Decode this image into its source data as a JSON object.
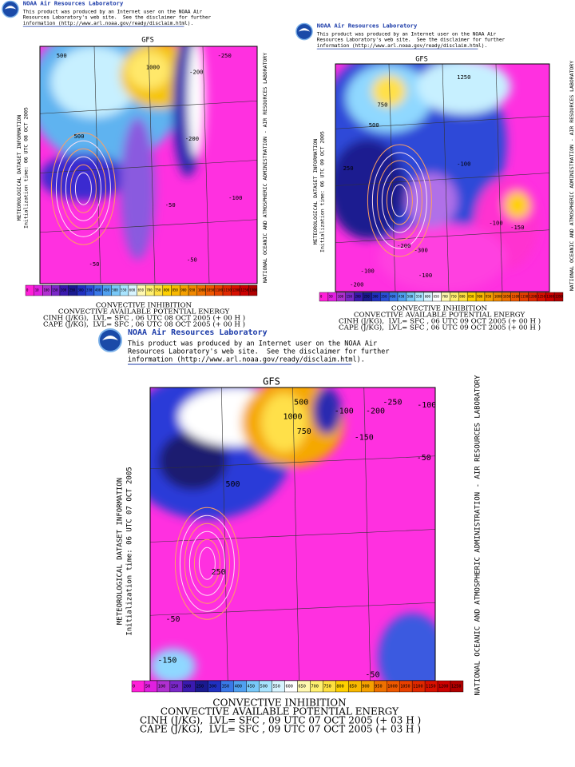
{
  "panels": [
    {
      "disclaimer": {
        "org": "NOAA Air Resources Laboratory",
        "lines": [
          "This product was produced by an Internet user on the NOAA Air",
          "Resources Laboratory's web site.  See the disclaimer for further",
          "information (http://www.arl.noaa.gov/ready/disclaim.html)."
        ]
      },
      "model": "GFS",
      "left_text": [
        "METEOROLOGICAL DATASET INFORMATION",
        "Initialization time: 06 UTC 08 OCT 2005"
      ],
      "right_text": "NATIONAL OCEANIC AND ATMOSPHERIC ADMINISTRATION - AIR RESOURCES LABORATORY",
      "contour_labels": [
        "500",
        "1000",
        "-250",
        "-200",
        "500",
        "-200",
        "-100",
        "-50",
        "-50",
        "-50"
      ],
      "colorbar": [
        0,
        10,
        100,
        150,
        200,
        250,
        300,
        350,
        400,
        450,
        500,
        550,
        600,
        650,
        700,
        750,
        800,
        850,
        900,
        950,
        1000,
        1050,
        1100,
        1150,
        1200,
        1250,
        1300
      ],
      "caption": [
        "CONVECTIVE INHIBITION",
        "CONVECTIVE AVAILABLE POTENTIAL ENERGY",
        "CINH (J/KG),  LVL= SFC , 06 UTC 08 OCT 2005 (+ 00 H )",
        "CAPE (J/KG),  LVL= SFC , 06 UTC 08 OCT 2005 (+ 00 H )"
      ]
    },
    {
      "disclaimer": {
        "org": "NOAA Air Resources Laboratory",
        "lines": [
          "This product was produced by an Internet user on the NOAA Air",
          "Resources Laboratory's web site.  See the disclaimer for further",
          "information (http://www.arl.noaa.gov/ready/disclaim.html)."
        ]
      },
      "model": "GFS",
      "left_text": [
        "METEOROLOGICAL DATASET INFORMATION",
        "Initialization time: 06 UTC 09 OCT 2005"
      ],
      "right_text": "NATIONAL OCEANIC AND ATMOSPHERIC ADMINISTRATION - AIR RESOURCES LABORATORY",
      "contour_labels": [
        "1250",
        "750",
        "500",
        "250",
        "-100",
        "-100",
        "-150",
        "-200",
        "-300",
        "-100",
        "-100",
        "-200"
      ],
      "colorbar": [
        0,
        50,
        100,
        150,
        200,
        250,
        300,
        350,
        400,
        450,
        500,
        550,
        600,
        650,
        700,
        750,
        800,
        850,
        900,
        950,
        1000,
        1050,
        1100,
        1150,
        1200,
        1250,
        1300,
        1350
      ],
      "caption": [
        "CONVECTIVE INHIBITION",
        "CONVECTIVE AVAILABLE POTENTIAL ENERGY",
        "CINH (J/KG),  LVL= SFC , 06 UTC 09 OCT 2005 (+ 00 H )",
        "CAPE (J/KG),  LVL= SFC , 06 UTC 09 OCT 2005 (+ 00 H )"
      ]
    },
    {
      "disclaimer": {
        "org": "NOAA Air Resources Laboratory",
        "lines": [
          "This product was produced by an Internet user on the NOAA Air",
          "Resources Laboratory's web site.  See the disclaimer for further",
          "information (http://www.arl.noaa.gov/ready/disclaim.html)."
        ]
      },
      "model": "GFS",
      "left_text": [
        "METEOROLOGICAL DATASET INFORMATION",
        "Initialization time: 06 UTC 07 OCT 2005"
      ],
      "right_text": "NATIONAL OCEANIC AND ATMOSPHERIC ADMINISTRATION - AIR RESOURCES LABORATORY",
      "contour_labels": [
        "500",
        "1000",
        "-100",
        "-200",
        "-250",
        "-100",
        "-150",
        "750",
        "-50",
        "500",
        "250",
        "-50",
        "-150",
        "-50"
      ],
      "colorbar": [
        0,
        50,
        100,
        150,
        200,
        250,
        300,
        350,
        400,
        450,
        500,
        550,
        600,
        650,
        700,
        750,
        800,
        850,
        900,
        950,
        1000,
        1050,
        1100,
        1150,
        1200,
        1250
      ],
      "caption": [
        "CONVECTIVE INHIBITION",
        "CONVECTIVE AVAILABLE POTENTIAL ENERGY",
        "CINH (J/KG),  LVL= SFC , 09 UTC 07 OCT 2005 (+ 03 H )",
        "CAPE (J/KG),  LVL= SFC , 09 UTC 07 OCT 2005 (+ 03 H )"
      ]
    }
  ]
}
